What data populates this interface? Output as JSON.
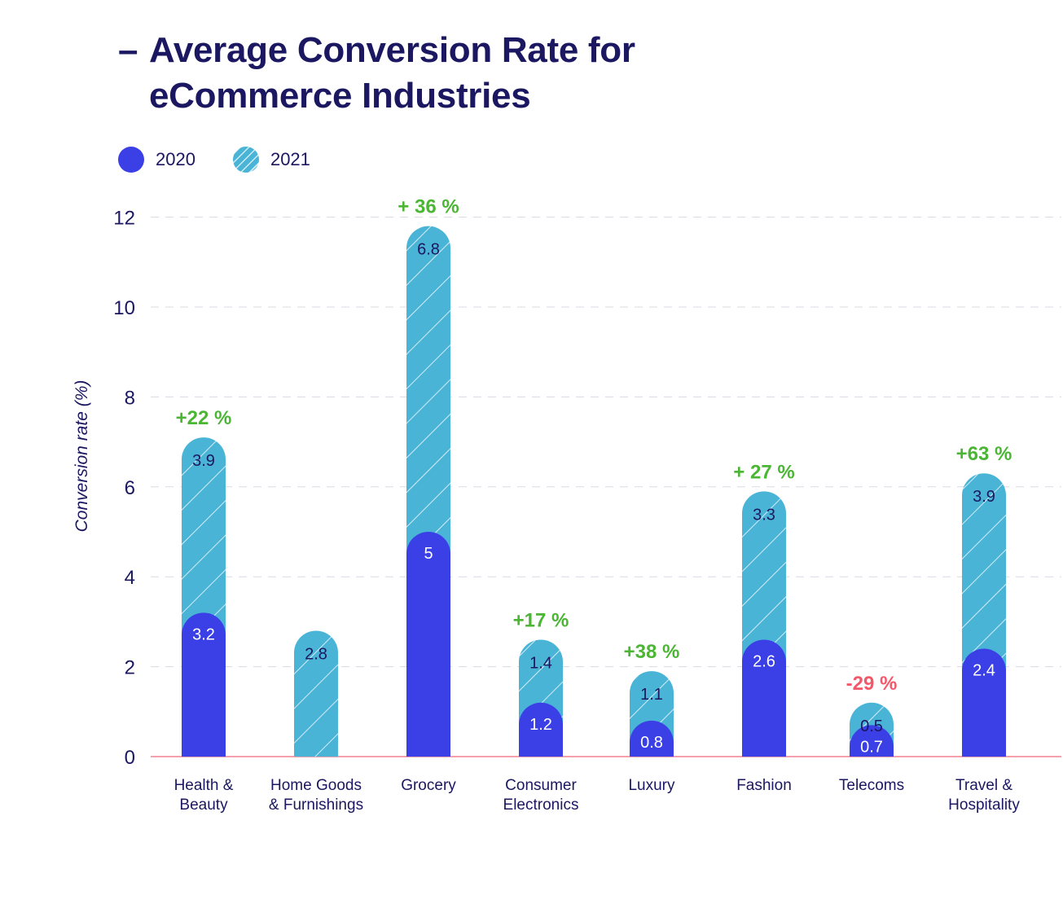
{
  "title": {
    "dash": "–",
    "line1": "Average Conversion Rate for",
    "line2": "eCommerce Industries"
  },
  "legend": [
    {
      "label": "2020",
      "color": "#3a3fe6",
      "pattern": "solid"
    },
    {
      "label": "2021",
      "color": "#4ab4d7",
      "pattern": "hatched"
    }
  ],
  "colors": {
    "bar_2020": "#3a3fe6",
    "bar_2021": "#4ab4d7",
    "positive_change": "#4bb534",
    "negative_change": "#f2586a",
    "text": "#1b1760",
    "baseline": "#f4a0ad"
  },
  "chart_data": {
    "type": "bar",
    "stacked": true,
    "ylabel": "Conversion rate (%)",
    "ylim": [
      0,
      12
    ],
    "yticks": [
      0,
      2,
      4,
      6,
      8,
      10,
      12
    ],
    "grid": "dashed horizontal",
    "legend_position": "top-left",
    "categories": [
      [
        "Health &",
        "Beauty"
      ],
      [
        "Home Goods",
        "& Furnishings"
      ],
      [
        "Grocery"
      ],
      [
        "Consumer",
        "Electronics"
      ],
      [
        "Luxury"
      ],
      [
        "Fashion"
      ],
      [
        "Telecoms"
      ],
      [
        "Travel &",
        "Hospitality"
      ]
    ],
    "series": [
      {
        "name": "2020",
        "values": [
          3.2,
          null,
          5,
          1.2,
          0.8,
          2.6,
          0.7,
          2.4
        ]
      },
      {
        "name": "2021",
        "values": [
          3.9,
          2.8,
          6.8,
          1.4,
          1.1,
          3.3,
          0.5,
          3.9
        ]
      }
    ],
    "changes": [
      "+22 %",
      "",
      "+ 36 %",
      "+17 %",
      "+38 %",
      "+ 27 %",
      "-29 %",
      "+63 %"
    ],
    "change_sign": [
      "positive",
      "",
      "positive",
      "positive",
      "positive",
      "positive",
      "negative",
      "positive"
    ]
  }
}
